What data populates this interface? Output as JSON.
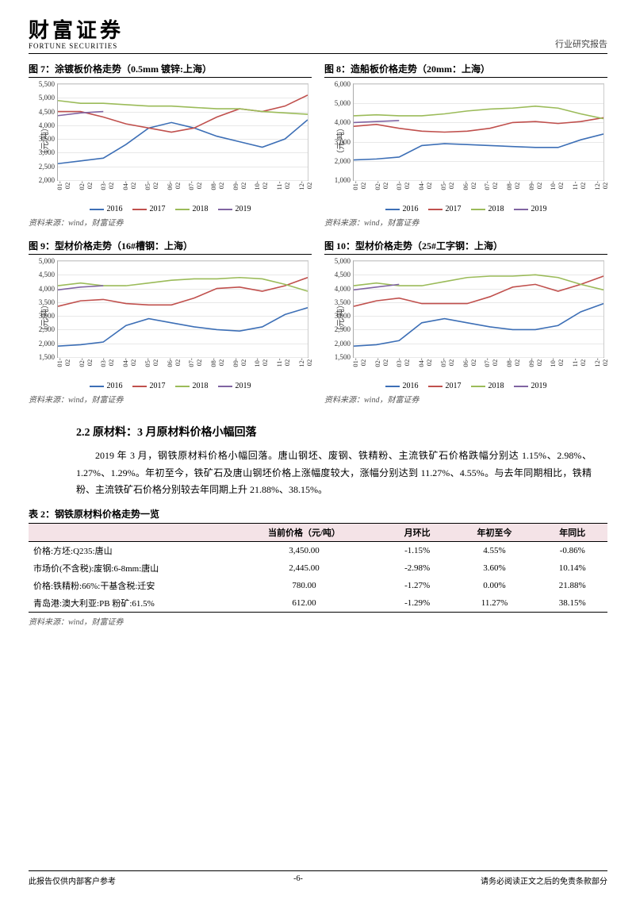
{
  "header": {
    "logo_cn": "财富证券",
    "logo_en": "FORTUNE SECURITIES",
    "right": "行业研究报告"
  },
  "chart_common": {
    "x_labels": [
      "01-02",
      "02-02",
      "03-02",
      "04-02",
      "05-02",
      "06-02",
      "07-02",
      "08-02",
      "09-02",
      "10-02",
      "11-02",
      "12-02"
    ],
    "y_label": "（元/吨）",
    "series_colors": {
      "2016": "#3d6fb6",
      "2017": "#c0504d",
      "2018": "#9bbb59",
      "2019": "#8064a2"
    },
    "series_names": [
      "2016",
      "2017",
      "2018",
      "2019"
    ],
    "grid_color": "#e8e8e8",
    "axis_color": "#888"
  },
  "charts": [
    {
      "title": "图 7：涂镀板价格走势（0.5mm 镀锌:上海）",
      "ylim": [
        2000,
        5500
      ],
      "ytick_step": 500,
      "series": {
        "2016": [
          2600,
          2700,
          2800,
          3300,
          3900,
          4100,
          3900,
          3600,
          3400,
          3200,
          3500,
          4200
        ],
        "2017": [
          4500,
          4500,
          4300,
          4050,
          3900,
          3750,
          3900,
          4300,
          4600,
          4500,
          4700,
          5100
        ],
        "2018": [
          4900,
          4800,
          4800,
          4750,
          4700,
          4700,
          4650,
          4600,
          4600,
          4500,
          4450,
          4400
        ],
        "2019": [
          4350,
          4450,
          4500
        ]
      }
    },
    {
      "title": "图 8：造船板价格走势（20mm：上海）",
      "ylim": [
        1000,
        6000
      ],
      "ytick_step": 1000,
      "series": {
        "2016": [
          2050,
          2100,
          2200,
          2800,
          2900,
          2850,
          2800,
          2750,
          2700,
          2700,
          3100,
          3400
        ],
        "2017": [
          3800,
          3900,
          3700,
          3550,
          3500,
          3550,
          3700,
          4000,
          4050,
          3950,
          4050,
          4250
        ],
        "2018": [
          4350,
          4400,
          4350,
          4350,
          4450,
          4600,
          4700,
          4750,
          4850,
          4750,
          4450,
          4200
        ],
        "2019": [
          4000,
          4050,
          4100
        ]
      }
    },
    {
      "title": "图 9：型材价格走势（16#槽钢：上海）",
      "ylim": [
        1500,
        5000
      ],
      "ytick_step": 500,
      "series": {
        "2016": [
          1900,
          1950,
          2050,
          2650,
          2900,
          2750,
          2600,
          2500,
          2450,
          2600,
          3050,
          3300
        ],
        "2017": [
          3350,
          3550,
          3600,
          3450,
          3400,
          3400,
          3650,
          4000,
          4050,
          3900,
          4100,
          4400
        ],
        "2018": [
          4100,
          4200,
          4100,
          4100,
          4200,
          4300,
          4350,
          4350,
          4400,
          4350,
          4150,
          3900
        ],
        "2019": [
          3950,
          4050,
          4100
        ]
      }
    },
    {
      "title": "图 10：型材价格走势（25#工字钢：上海）",
      "ylim": [
        1500,
        5000
      ],
      "ytick_step": 500,
      "series": {
        "2016": [
          1900,
          1950,
          2100,
          2750,
          2900,
          2750,
          2600,
          2500,
          2500,
          2650,
          3150,
          3450
        ],
        "2017": [
          3350,
          3550,
          3650,
          3450,
          3450,
          3450,
          3700,
          4050,
          4150,
          3900,
          4150,
          4450
        ],
        "2018": [
          4100,
          4200,
          4100,
          4100,
          4250,
          4400,
          4450,
          4450,
          4500,
          4400,
          4150,
          3950
        ],
        "2019": [
          3950,
          4050,
          4150
        ]
      }
    }
  ],
  "source": "资料来源：wind，财富证券",
  "section_title": "2.2 原材料：3 月原材料价格小幅回落",
  "body_text": "2019 年 3 月，钢铁原材料价格小幅回落。唐山钢坯、废钢、铁精粉、主流铁矿石价格跌幅分别达 1.15%、2.98%、1.27%、1.29%。年初至今，铁矿石及唐山钢坯价格上涨幅度较大，涨幅分别达到 11.27%、4.55%。与去年同期相比，铁精粉、主流铁矿石价格分别较去年同期上升 21.88%、38.15%。",
  "table": {
    "title": "表 2：钢铁原材料价格走势一览",
    "header_bg": "#f4e3e7",
    "columns": [
      "",
      "当前价格（元/吨）",
      "月环比",
      "年初至今",
      "年同比"
    ],
    "rows": [
      [
        "价格:方坯:Q235:唐山",
        "3,450.00",
        "-1.15%",
        "4.55%",
        "-0.86%"
      ],
      [
        "市场价(不含税):废钢:6-8mm:唐山",
        "2,445.00",
        "-2.98%",
        "3.60%",
        "10.14%"
      ],
      [
        "价格:铁精粉:66%:干基含税:迁安",
        "780.00",
        "-1.27%",
        "0.00%",
        "21.88%"
      ],
      [
        "青岛港:澳大利亚:PB 粉矿:61.5%",
        "612.00",
        "-1.29%",
        "11.27%",
        "38.15%"
      ]
    ]
  },
  "footer": {
    "left": "此报告仅供内部客户参考",
    "center": "-6-",
    "right": "请务必阅读正文之后的免责条款部分"
  }
}
